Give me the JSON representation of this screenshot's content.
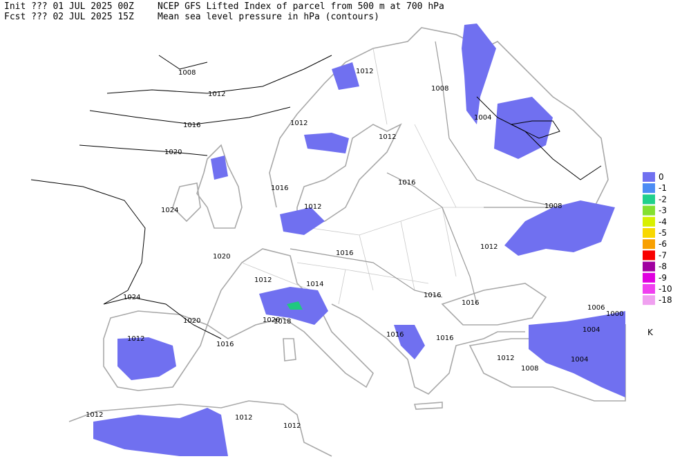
{
  "header": {
    "init": "Init  ??? 01 JUL 2025 00Z",
    "title": "NCEP GFS Lifted Index of parcel from 500 m at 700 hPa",
    "fcst": "Fcst ??? 02 JUL 2025 15Z",
    "subtitle": "Mean sea level pressure in hPa (contours)"
  },
  "legend": {
    "unit": "K",
    "items": [
      {
        "label": "0",
        "color": "#7070f0"
      },
      {
        "label": "-1",
        "color": "#4c8cf4"
      },
      {
        "label": "-2",
        "color": "#20d08c"
      },
      {
        "label": "-3",
        "color": "#84e030"
      },
      {
        "label": "-4",
        "color": "#d8f000"
      },
      {
        "label": "-5",
        "color": "#f8d800"
      },
      {
        "label": "-6",
        "color": "#f8a000"
      },
      {
        "label": "-7",
        "color": "#f80000"
      },
      {
        "label": "-8",
        "color": "#a000a0"
      },
      {
        "label": "-9",
        "color": "#e000e0"
      },
      {
        "label": "-10",
        "color": "#f040f0"
      },
      {
        "label": "-18",
        "color": "#f0a0f0"
      }
    ]
  },
  "contour_labels": [
    "1008",
    "1012",
    "1012",
    "1008",
    "1016",
    "1012",
    "1012",
    "1004",
    "1020",
    "1016",
    "1016",
    "1024",
    "1012",
    "1008",
    "1020",
    "1016",
    "1012",
    "1012",
    "1014",
    "1016",
    "1016",
    "1024",
    "1020",
    "1020",
    "1018",
    "1012",
    "1016",
    "1016",
    "1016",
    "1006",
    "1000",
    "1004",
    "1004",
    "1012",
    "1008",
    "1012",
    "1012",
    "1012"
  ]
}
